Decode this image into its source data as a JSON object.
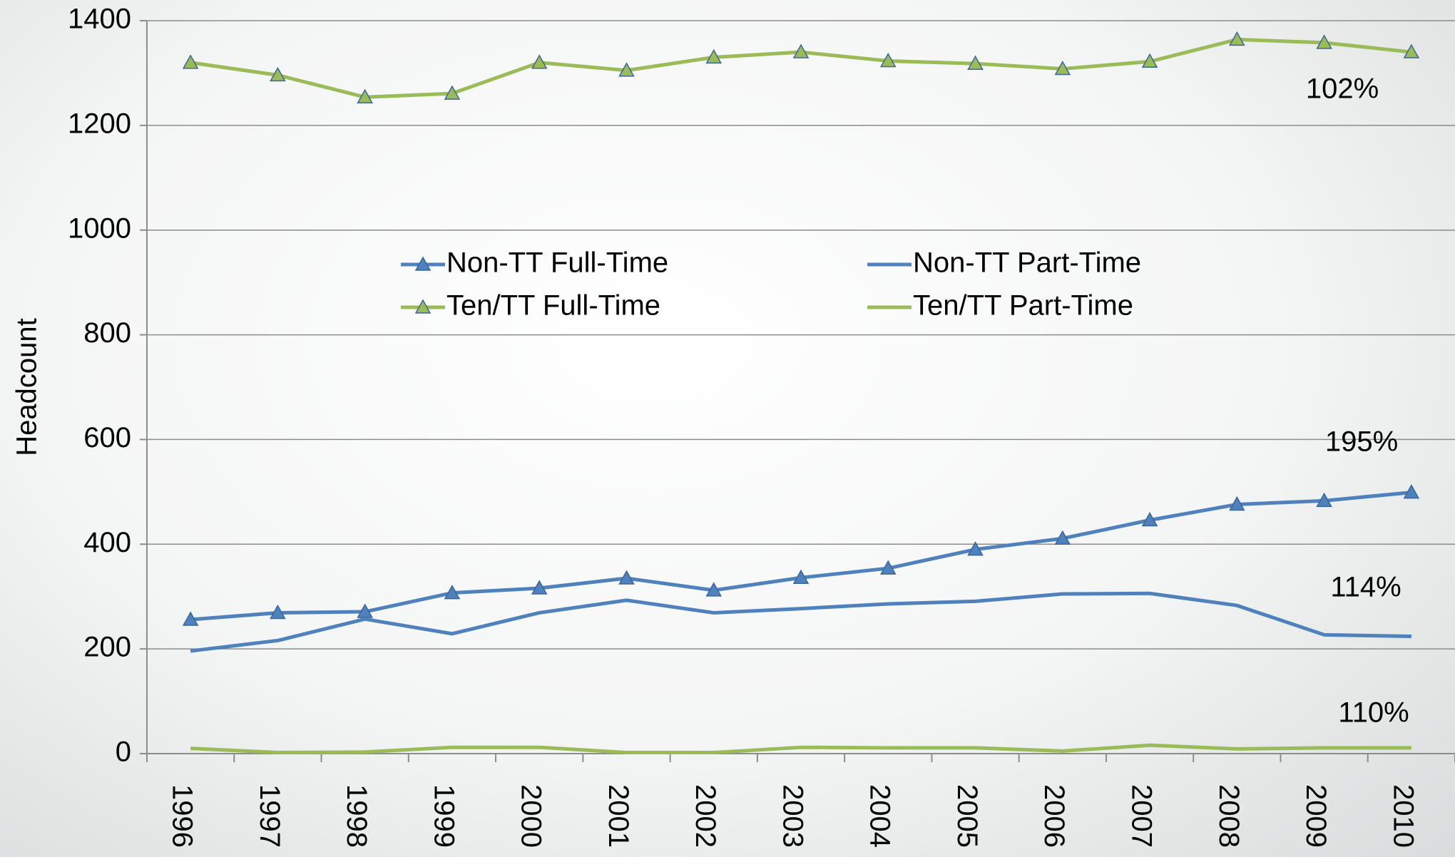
{
  "chart_data": {
    "type": "line",
    "y_label": "Headcount",
    "categories": [
      "1996",
      "1997",
      "1998",
      "1999",
      "2000",
      "2001",
      "2002",
      "2003",
      "2004",
      "2005",
      "2006",
      "2007",
      "2008",
      "2009",
      "2010"
    ],
    "series": [
      {
        "name": "Non-TT Full-Time",
        "color": "#4f81bd",
        "marker": "triangle",
        "values": [
          256,
          269,
          271,
          307,
          316,
          335,
          312,
          336,
          354,
          390,
          411,
          446,
          476,
          483,
          499
        ]
      },
      {
        "name": "Non-TT Part-Time",
        "color": "#4f81bd",
        "marker": "none",
        "values": [
          196,
          216,
          257,
          229,
          269,
          293,
          269,
          277,
          286,
          291,
          305,
          306,
          283,
          227,
          224
        ]
      },
      {
        "name": "Ten/TT Full-Time",
        "color": "#9bbb59",
        "marker": "triangle",
        "values": [
          1320,
          1296,
          1254,
          1261,
          1320,
          1305,
          1330,
          1340,
          1323,
          1318,
          1308,
          1322,
          1364,
          1358,
          1340
        ]
      },
      {
        "name": "Ten/TT Part-Time",
        "color": "#9bbb59",
        "marker": "none",
        "values": [
          10,
          2,
          3,
          12,
          12,
          2,
          2,
          12,
          11,
          11,
          5,
          16,
          9,
          11,
          11
        ]
      }
    ],
    "annotations": [
      "102%",
      "195%",
      "114%",
      "110%"
    ],
    "ylim": [
      0,
      1400
    ],
    "yticks": [
      0,
      200,
      400,
      600,
      800,
      1000,
      1200,
      1400
    ],
    "grid": true
  }
}
